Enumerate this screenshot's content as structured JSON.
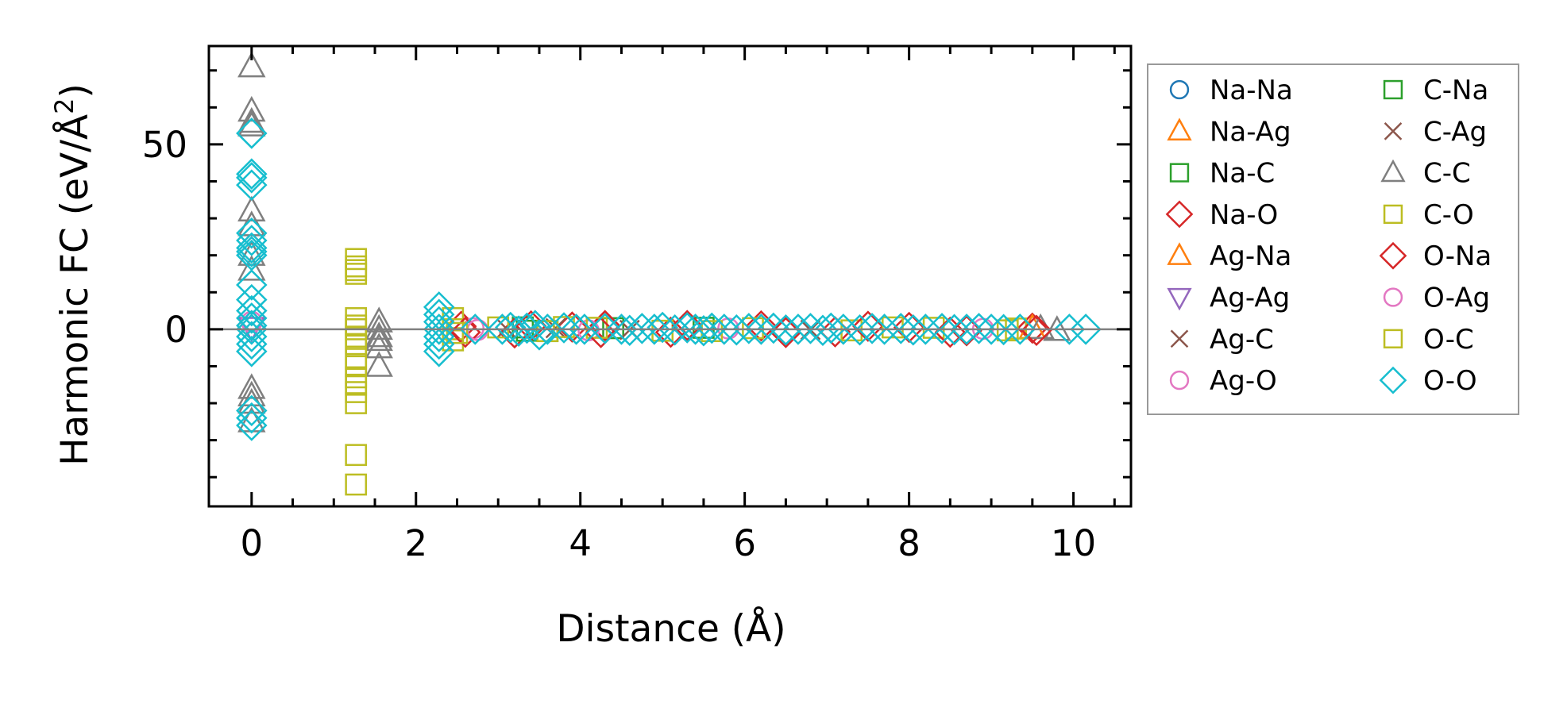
{
  "chart_data": {
    "type": "scatter",
    "title": "",
    "xlabel": "Distance (Å)",
    "ylabel": "Harmonic FC (eV/Å²)",
    "ylabel_base": "Harmonic FC (eV/Å",
    "ylabel_sup": "2",
    "ylabel_end": ")",
    "xlim": [
      -0.52,
      10.7
    ],
    "ylim": [
      -47.9,
      76.6
    ],
    "x_ticks": [
      0,
      2,
      4,
      6,
      8,
      10
    ],
    "x_tick_labels": [
      "0",
      "2",
      "4",
      "6",
      "8",
      "10"
    ],
    "y_ticks": [
      0,
      50
    ],
    "y_tick_labels": [
      "0",
      "50"
    ],
    "grid": false,
    "zero_line": true,
    "legend_position": "outside-right",
    "series": [
      {
        "name": "Na-Na",
        "marker": "circle",
        "color": "#1f77b4",
        "points": []
      },
      {
        "name": "Na-Ag",
        "marker": "triangle-up",
        "color": "#ff7f0e",
        "points": []
      },
      {
        "name": "Na-C",
        "marker": "square",
        "color": "#2ca02c",
        "points": [
          [
            3.3,
            0.5
          ],
          [
            3.6,
            -0.5
          ],
          [
            4.4,
            0.3
          ]
        ]
      },
      {
        "name": "Na-O",
        "marker": "diamond",
        "color": "#d62728",
        "points": [
          [
            2.55,
            0.8
          ],
          [
            3.2,
            -1
          ],
          [
            3.9,
            0.6
          ],
          [
            4.3,
            1
          ],
          [
            5.1,
            -0.8
          ],
          [
            6.2,
            0.9
          ],
          [
            7.1,
            -0.7
          ],
          [
            8.0,
            0.5
          ],
          [
            8.7,
            -0.4
          ],
          [
            9.5,
            0.3
          ]
        ]
      },
      {
        "name": "Ag-Na",
        "marker": "triangle-up",
        "color": "#ff7f0e",
        "points": [
          [
            9.5,
            0.2
          ]
        ]
      },
      {
        "name": "Ag-Ag",
        "marker": "triangle-down",
        "color": "#9467bd",
        "points": [
          [
            0,
            0.5
          ]
        ]
      },
      {
        "name": "Ag-C",
        "marker": "x",
        "color": "#8c564b",
        "points": [
          [
            3.1,
            0.2
          ],
          [
            4.6,
            -0.2
          ]
        ]
      },
      {
        "name": "Ag-O",
        "marker": "circle",
        "color": "#e377c2",
        "points": [
          [
            0,
            2
          ],
          [
            2.7,
            0.3
          ],
          [
            4.1,
            -0.3
          ]
        ]
      },
      {
        "name": "C-Na",
        "marker": "square",
        "color": "#2ca02c",
        "points": [
          [
            3.35,
            -0.4
          ],
          [
            5.5,
            0.4
          ]
        ]
      },
      {
        "name": "C-Ag",
        "marker": "x",
        "color": "#8c564b",
        "points": [
          [
            3.7,
            0.3
          ],
          [
            6.8,
            -0.2
          ]
        ]
      },
      {
        "name": "C-C",
        "marker": "triangle-up",
        "color": "#7f7f7f",
        "points": [
          [
            0,
            71
          ],
          [
            0,
            59
          ],
          [
            0,
            56
          ],
          [
            0,
            55
          ],
          [
            0,
            32
          ],
          [
            0,
            28
          ],
          [
            0,
            20
          ],
          [
            0,
            16
          ],
          [
            0,
            -16
          ],
          [
            0,
            -18
          ],
          [
            0,
            -20
          ],
          [
            0,
            -25
          ],
          [
            1.55,
            2
          ],
          [
            1.55,
            0
          ],
          [
            1.55,
            -2
          ],
          [
            1.55,
            -3
          ],
          [
            1.55,
            -5
          ],
          [
            1.55,
            -10
          ],
          [
            9.6,
            0.2
          ],
          [
            9.8,
            -0.3
          ]
        ]
      },
      {
        "name": "C-O",
        "marker": "square",
        "color": "#bcbd22",
        "points": [
          [
            1.27,
            19
          ],
          [
            1.27,
            17
          ],
          [
            1.27,
            16
          ],
          [
            1.27,
            15
          ],
          [
            1.27,
            3
          ],
          [
            1.27,
            1
          ],
          [
            1.27,
            0
          ],
          [
            1.27,
            -2
          ],
          [
            1.27,
            -4
          ],
          [
            1.27,
            -8
          ],
          [
            1.27,
            -10
          ],
          [
            1.27,
            -13
          ],
          [
            1.27,
            -15
          ],
          [
            1.27,
            -17
          ],
          [
            1.27,
            -20
          ],
          [
            1.27,
            -34
          ],
          [
            1.27,
            -42
          ],
          [
            2.45,
            3
          ],
          [
            2.45,
            0
          ],
          [
            2.45,
            -3
          ],
          [
            3.0,
            0.5
          ],
          [
            3.6,
            -0.5
          ],
          [
            4.2,
            0.4
          ],
          [
            5.0,
            -0.4
          ],
          [
            6.1,
            0.3
          ],
          [
            7.3,
            -0.3
          ],
          [
            8.3,
            0.4
          ],
          [
            9.3,
            0.2
          ]
        ]
      },
      {
        "name": "O-Na",
        "marker": "diamond",
        "color": "#d62728",
        "points": [
          [
            2.6,
            -0.8
          ],
          [
            3.4,
            0.9
          ],
          [
            4.25,
            -0.9
          ],
          [
            5.3,
            1
          ],
          [
            6.5,
            -0.9
          ],
          [
            7.5,
            0.8
          ],
          [
            8.5,
            -0.8
          ],
          [
            9.55,
            -0.3
          ]
        ]
      },
      {
        "name": "O-Ag",
        "marker": "circle",
        "color": "#e377c2",
        "points": [
          [
            2.75,
            -0.2
          ],
          [
            5.8,
            0.2
          ],
          [
            8.9,
            0.1
          ]
        ]
      },
      {
        "name": "O-C",
        "marker": "square",
        "color": "#bcbd22",
        "points": [
          [
            2.5,
            -1
          ],
          [
            3.8,
            0.6
          ],
          [
            5.6,
            -0.5
          ],
          [
            7.8,
            0.5
          ],
          [
            9.2,
            -0.3
          ]
        ]
      },
      {
        "name": "O-O",
        "marker": "diamond",
        "color": "#17becf",
        "points": [
          [
            0,
            53
          ],
          [
            0,
            42
          ],
          [
            0,
            41
          ],
          [
            0,
            39
          ],
          [
            0,
            26
          ],
          [
            0,
            24
          ],
          [
            0,
            22
          ],
          [
            0,
            21
          ],
          [
            0,
            20
          ],
          [
            0,
            12
          ],
          [
            0,
            8
          ],
          [
            0,
            5
          ],
          [
            0,
            3
          ],
          [
            0,
            1
          ],
          [
            0,
            0
          ],
          [
            0,
            -2
          ],
          [
            0,
            -4
          ],
          [
            0,
            -6
          ],
          [
            0,
            -22
          ],
          [
            0,
            -24
          ],
          [
            0,
            -26
          ],
          [
            2.28,
            6
          ],
          [
            2.28,
            4
          ],
          [
            2.28,
            2
          ],
          [
            2.28,
            0
          ],
          [
            2.28,
            -2
          ],
          [
            2.28,
            -4
          ],
          [
            2.28,
            -6
          ],
          [
            2.72,
            0
          ],
          [
            3.05,
            0
          ],
          [
            3.15,
            0.5
          ],
          [
            3.25,
            -0.5
          ],
          [
            3.35,
            0.3
          ],
          [
            3.45,
            1
          ],
          [
            3.5,
            -1.5
          ],
          [
            3.6,
            0
          ],
          [
            3.8,
            0.4
          ],
          [
            3.95,
            0
          ],
          [
            4.05,
            0
          ],
          [
            4.3,
            0.2
          ],
          [
            4.5,
            0
          ],
          [
            4.6,
            -0.3
          ],
          [
            4.75,
            0.2
          ],
          [
            4.9,
            0
          ],
          [
            5.0,
            0.5
          ],
          [
            5.15,
            -0.2
          ],
          [
            5.3,
            0.4
          ],
          [
            5.4,
            0
          ],
          [
            5.5,
            -0.4
          ],
          [
            5.6,
            0.3
          ],
          [
            5.75,
            0
          ],
          [
            5.9,
            -0.2
          ],
          [
            6.05,
            0.2
          ],
          [
            6.2,
            0
          ],
          [
            6.35,
            0.3
          ],
          [
            6.5,
            -0.2
          ],
          [
            6.65,
            0
          ],
          [
            6.8,
            0.2
          ],
          [
            6.95,
            -0.3
          ],
          [
            7.05,
            0.3
          ],
          [
            7.2,
            0
          ],
          [
            7.4,
            -0.2
          ],
          [
            7.55,
            0.2
          ],
          [
            7.7,
            0
          ],
          [
            7.9,
            0.2
          ],
          [
            8.05,
            -0.2
          ],
          [
            8.2,
            0
          ],
          [
            8.4,
            0.2
          ],
          [
            8.55,
            -0.1
          ],
          [
            8.7,
            0
          ],
          [
            8.85,
            0.2
          ],
          [
            9.0,
            0
          ],
          [
            9.15,
            -0.1
          ],
          [
            9.35,
            0
          ],
          [
            9.95,
            0
          ],
          [
            10.15,
            0
          ]
        ]
      }
    ]
  }
}
